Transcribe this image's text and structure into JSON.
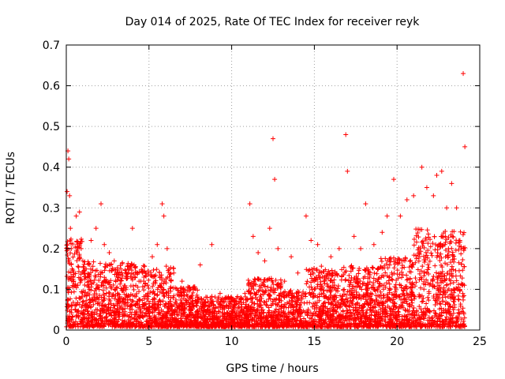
{
  "chart_data": {
    "type": "scatter",
    "title": "Day 014 of 2025, Rate Of TEC Index for receiver reyk",
    "xlabel": "GPS time / hours",
    "ylabel": "ROTI / TECUs",
    "xlim": [
      0,
      25
    ],
    "ylim": [
      0,
      0.7
    ],
    "x_ticks": [
      "0",
      "5",
      "10",
      "15",
      "20",
      "25"
    ],
    "y_ticks": [
      "0",
      "0.1",
      "0.2",
      "0.3",
      "0.4",
      "0.5",
      "0.6",
      "0.7"
    ],
    "grid": true,
    "marker": "plus",
    "color": "#ff0000",
    "series": [
      {
        "x": [
          0.05,
          0.1,
          0.15,
          0.2,
          0.25,
          0.3,
          0.35,
          0.45,
          0.6,
          0.8,
          0.9,
          1.0,
          1.2,
          1.5,
          1.8,
          2.1,
          2.3,
          2.6,
          2.9,
          3.3,
          3.6,
          4.0,
          4.1,
          4.4,
          4.8,
          5.2,
          5.5,
          5.8,
          5.9,
          6.1,
          6.5,
          7.0,
          7.5,
          8.1,
          8.8,
          9.3,
          9.8,
          10.3,
          10.8,
          11.1,
          11.3,
          11.6,
          12.0,
          12.3,
          12.5,
          12.6,
          12.8,
          13.2,
          13.6,
          14.0,
          14.5,
          14.8,
          15.2,
          15.6,
          16.0,
          16.5,
          16.9,
          17.0,
          17.4,
          17.8,
          18.1,
          18.6,
          19.1,
          19.4,
          19.8,
          20.2,
          20.6,
          21.0,
          21.5,
          21.8,
          22.2,
          22.4,
          22.7,
          23.0,
          23.3,
          23.6,
          23.8,
          24.0,
          24.1,
          0.3,
          1.7,
          3.9,
          6.3,
          9.1,
          12.4,
          15.5,
          18.2,
          20.9,
          23.4
        ],
        "y": [
          0.34,
          0.44,
          0.42,
          0.33,
          0.25,
          0.2,
          0.15,
          0.12,
          0.28,
          0.29,
          0.2,
          0.17,
          0.15,
          0.22,
          0.25,
          0.31,
          0.21,
          0.19,
          0.17,
          0.15,
          0.14,
          0.25,
          0.16,
          0.12,
          0.14,
          0.18,
          0.21,
          0.31,
          0.28,
          0.2,
          0.14,
          0.12,
          0.1,
          0.16,
          0.21,
          0.09,
          0.08,
          0.07,
          0.09,
          0.31,
          0.23,
          0.19,
          0.17,
          0.25,
          0.47,
          0.37,
          0.2,
          0.12,
          0.18,
          0.14,
          0.28,
          0.22,
          0.21,
          0.13,
          0.18,
          0.2,
          0.48,
          0.39,
          0.23,
          0.2,
          0.31,
          0.21,
          0.24,
          0.28,
          0.37,
          0.28,
          0.32,
          0.33,
          0.4,
          0.35,
          0.33,
          0.38,
          0.39,
          0.3,
          0.36,
          0.3,
          0.22,
          0.63,
          0.45,
          0.05,
          0.08,
          0.06,
          0.07,
          0.04,
          0.06,
          0.05,
          0.07,
          0.06,
          0.05
        ]
      }
    ]
  }
}
